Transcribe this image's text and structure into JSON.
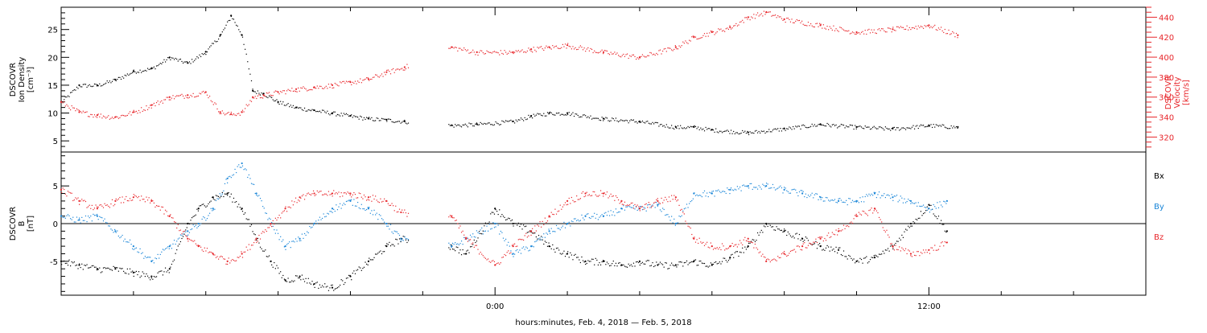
{
  "chart_data": [
    {
      "type": "scatter",
      "panel": "ion_density_velocity",
      "ylabel": [
        "DSCOVR",
        "Ion Density",
        "[cm⁻³]"
      ],
      "ylabel_right": [
        "DSCOVR",
        "Velocity",
        "[km/s]"
      ],
      "ylim": [
        3,
        29
      ],
      "ylim_right": [
        305,
        450
      ],
      "yticks": [
        5,
        10,
        15,
        20,
        25
      ],
      "yticks_right": [
        320,
        340,
        360,
        380,
        400,
        420,
        440
      ],
      "colors": {
        "density": "#000000",
        "velocity": "#e8262b"
      },
      "series": [
        {
          "key": "density",
          "color": "#000000",
          "x": [
            -12.0,
            -11.5,
            -11.0,
            -10.5,
            -10.0,
            -9.5,
            -9.0,
            -8.5,
            -8.0,
            -7.6,
            -7.3,
            -7.0,
            -6.7,
            -6.4,
            -6.0,
            -5.5,
            -5.0,
            -4.5,
            -4.0,
            -3.5,
            -3.0,
            -2.5,
            -1.2,
            -0.5,
            0.5,
            1.0,
            1.5,
            2.0,
            3.0,
            4.0,
            5.0,
            5.5,
            6.0,
            7.0,
            8.0,
            9.0,
            10.0,
            11.0,
            12.0,
            12.8
          ],
          "y": [
            12,
            15,
            15,
            16,
            17.5,
            18,
            20,
            19,
            21,
            24,
            27.5,
            24,
            14,
            13.5,
            12,
            11,
            10.5,
            10,
            9.5,
            9,
            8.8,
            8.5,
            7.8,
            8,
            8.5,
            9.5,
            10,
            10,
            9,
            8.5,
            7.5,
            7.5,
            7,
            6.5,
            7.2,
            8,
            7.5,
            7.2,
            7.8,
            7.5
          ]
        },
        {
          "key": "velocity",
          "color": "#e8262b",
          "x": [
            -12.0,
            -11.5,
            -11.0,
            -10.5,
            -10.0,
            -9.5,
            -9.0,
            -8.5,
            -8.0,
            -7.6,
            -7.3,
            -7.0,
            -6.7,
            -6.4,
            -6.0,
            -5.5,
            -5.0,
            -4.5,
            -4.0,
            -3.5,
            -3.0,
            -2.5,
            -1.2,
            -0.5,
            0.5,
            1.0,
            1.5,
            2.0,
            3.0,
            4.0,
            5.0,
            5.5,
            6.0,
            6.5,
            7.0,
            7.5,
            8.0,
            9.0,
            10.0,
            11.0,
            12.0,
            12.8
          ],
          "y": [
            355,
            345,
            342,
            340,
            345,
            352,
            360,
            362,
            365,
            345,
            343,
            345,
            360,
            362,
            365,
            368,
            370,
            372,
            375,
            378,
            385,
            390,
            410,
            405,
            405,
            408,
            410,
            412,
            405,
            400,
            410,
            420,
            425,
            430,
            440,
            445,
            438,
            432,
            425,
            428,
            432,
            422
          ]
        }
      ]
    },
    {
      "type": "scatter",
      "panel": "magnetic_field",
      "ylabel": [
        "DSCOVR",
        "B",
        "[nT]"
      ],
      "ylim": [
        -9.5,
        9.5
      ],
      "yticks": [
        -5,
        0,
        5
      ],
      "zero_line": true,
      "legend": [
        "Bx",
        "By",
        "Bz"
      ],
      "colors": {
        "Bx": "#000000",
        "By": "#1a86d8",
        "Bz": "#e8262b"
      },
      "series": [
        {
          "key": "Bx",
          "color": "#000000",
          "x": [
            -12.0,
            -11.5,
            -11.0,
            -10.5,
            -10.0,
            -9.5,
            -9.0,
            -8.5,
            -8.2,
            -7.8,
            -7.4,
            -7.0,
            -6.6,
            -6.2,
            -5.8,
            -5.4,
            -5.0,
            -4.5,
            -4.0,
            -3.5,
            -3.0,
            -2.6,
            -1.2,
            -0.8,
            0.0,
            0.5,
            1.0,
            1.5,
            2.0,
            2.5,
            3.0,
            3.5,
            4.0,
            4.5,
            5.0,
            5.5,
            6.0,
            6.5,
            7.0,
            7.5,
            8.0,
            8.5,
            9.0,
            9.5,
            10.0,
            10.5,
            11.0,
            11.5,
            12.0,
            12.5
          ],
          "y": [
            -5,
            -5.5,
            -6,
            -6,
            -6.5,
            -7,
            -6,
            0,
            2,
            3.5,
            4,
            2,
            -2,
            -5,
            -7.5,
            -7,
            -8,
            -8.5,
            -7,
            -5,
            -3,
            -2,
            -3,
            -4,
            2,
            0,
            -1,
            -3,
            -4,
            -5,
            -5,
            -5.5,
            -5,
            -5.5,
            -5.5,
            -5,
            -5.5,
            -4.5,
            -3,
            0,
            -1,
            -2,
            -3,
            -3.5,
            -5,
            -4.5,
            -3,
            0,
            2.5,
            -1
          ]
        },
        {
          "key": "By",
          "color": "#1a86d8",
          "x": [
            -12.0,
            -11.5,
            -11.0,
            -10.5,
            -10.0,
            -9.5,
            -9.0,
            -8.5,
            -8.2,
            -7.8,
            -7.4,
            -7.0,
            -6.6,
            -6.2,
            -5.8,
            -5.4,
            -5.0,
            -4.5,
            -4.0,
            -3.5,
            -3.0,
            -2.6,
            -1.2,
            -0.8,
            0.0,
            0.5,
            1.0,
            1.5,
            2.0,
            2.5,
            3.0,
            3.5,
            4.0,
            4.5,
            5.0,
            5.5,
            6.0,
            6.5,
            7.0,
            7.5,
            8.0,
            8.5,
            9.0,
            9.5,
            10.0,
            10.5,
            11.0,
            11.5,
            12.0,
            12.5
          ],
          "y": [
            1,
            0.5,
            1,
            -1,
            -3,
            -5,
            -3,
            -1,
            0,
            2,
            6,
            8,
            4,
            0,
            -3,
            -2,
            0,
            2,
            3,
            2,
            0,
            -2,
            -3,
            -2,
            0,
            -4,
            -3,
            -1,
            0,
            1,
            1,
            2,
            2,
            2.5,
            0,
            4,
            4,
            4.5,
            5,
            5,
            4.5,
            4,
            3.5,
            3,
            3,
            4,
            3.5,
            3,
            2,
            3
          ]
        },
        {
          "key": "Bz",
          "color": "#e8262b",
          "x": [
            -12.0,
            -11.5,
            -11.0,
            -10.5,
            -10.0,
            -9.5,
            -9.0,
            -8.5,
            -8.2,
            -7.8,
            -7.4,
            -7.0,
            -6.6,
            -6.2,
            -5.8,
            -5.4,
            -5.0,
            -4.5,
            -4.0,
            -3.5,
            -3.0,
            -2.6,
            -1.2,
            -0.8,
            0.0,
            0.5,
            1.0,
            1.5,
            2.0,
            2.5,
            3.0,
            3.5,
            4.0,
            4.5,
            5.0,
            5.5,
            6.0,
            6.5,
            7.0,
            7.5,
            8.0,
            8.5,
            9.0,
            9.5,
            10.0,
            10.5,
            11.0,
            11.5,
            12.0,
            12.5
          ],
          "y": [
            4.5,
            3,
            2,
            3,
            3.5,
            3,
            1,
            -2,
            -3,
            -4,
            -5,
            -4,
            -2,
            0,
            2,
            3.5,
            4,
            4,
            4,
            3.5,
            3,
            1.5,
            1,
            -2,
            -5.5,
            -3,
            -1,
            1,
            3,
            4,
            4,
            3,
            2,
            3,
            3.5,
            -2,
            -3,
            -3,
            -2,
            -5,
            -4,
            -3,
            -2,
            -1,
            1,
            2,
            -3,
            -4,
            -3.5,
            -2.5
          ]
        }
      ]
    }
  ],
  "x_axis": {
    "xlim": [
      -12.0,
      18.0
    ],
    "tick_labels": [
      {
        "x": 0,
        "label": "0:00"
      },
      {
        "x": 12,
        "label": "12:00"
      }
    ],
    "minor_tick_step": 2,
    "xlabel": "hours:minutes, Feb.  4, 2018 — Feb.  5, 2018"
  }
}
